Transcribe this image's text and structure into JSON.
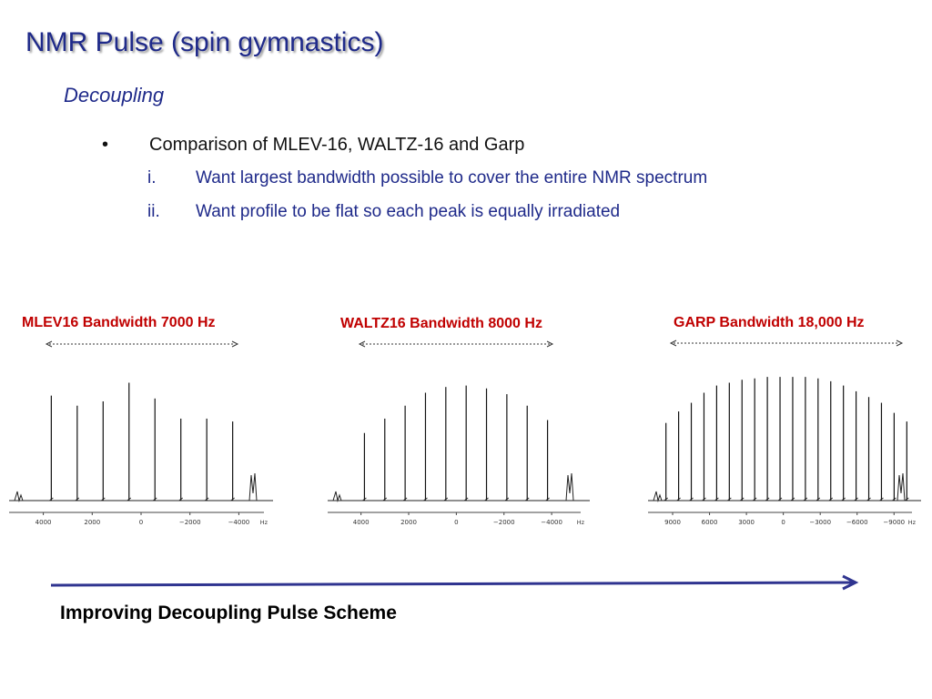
{
  "slide": {
    "title": "NMR Pulse (spin gymnastics)",
    "subtitle": "Decoupling",
    "bullet": {
      "marker": "•",
      "text": "Comparison of MLEV-16, WALTZ-16 and Garp"
    },
    "sub_bullets": [
      {
        "marker": "i.",
        "text": "Want largest bandwidth possible to cover the entire NMR spectrum"
      },
      {
        "marker": "ii.",
        "text": "Want profile to be flat so each peak is equally irradiated"
      }
    ],
    "footer": "Improving Decoupling Pulse Scheme",
    "colors": {
      "title": "#1f2a8a",
      "spectrum_title": "#c00000",
      "arrow": "#2f3490"
    }
  },
  "spectra": [
    {
      "title": "MLEV16 Bandwidth 7000 Hz",
      "axis_unit": "Hz",
      "ticks": [
        {
          "value": 4000,
          "label": "4000"
        },
        {
          "value": 2000,
          "label": "2000"
        },
        {
          "value": 0,
          "label": "0"
        },
        {
          "value": -2000,
          "label": "−2000"
        },
        {
          "value": -4000,
          "label": "−4000"
        }
      ],
      "x_range": [
        5400,
        -5400
      ],
      "peak_heights": [
        0.73,
        0.66,
        0.69,
        0.82,
        0.71,
        0.57,
        0.57,
        0.55
      ]
    },
    {
      "title": "WALTZ16 Bandwidth 8000 Hz",
      "axis_unit": "Hz",
      "ticks": [
        {
          "value": 4000,
          "label": "4000"
        },
        {
          "value": 2000,
          "label": "2000"
        },
        {
          "value": 0,
          "label": "0"
        },
        {
          "value": -2000,
          "label": "−2000"
        },
        {
          "value": -4000,
          "label": "−4000"
        }
      ],
      "x_range": [
        5400,
        -5600
      ],
      "peak_heights": [
        0.47,
        0.57,
        0.66,
        0.75,
        0.79,
        0.8,
        0.78,
        0.74,
        0.66,
        0.56
      ]
    },
    {
      "title": "GARP Bandwidth 18,000 Hz",
      "axis_unit": "Hz",
      "ticks": [
        {
          "value": 9000,
          "label": "9000"
        },
        {
          "value": 6000,
          "label": "6000"
        },
        {
          "value": 3000,
          "label": "3000"
        },
        {
          "value": 0,
          "label": "0"
        },
        {
          "value": -3000,
          "label": "−3000"
        },
        {
          "value": -6000,
          "label": "−6000"
        },
        {
          "value": -9000,
          "label": "−9000"
        }
      ],
      "x_range": [
        11000,
        -11200
      ],
      "peak_heights": [
        0.54,
        0.62,
        0.68,
        0.75,
        0.8,
        0.82,
        0.84,
        0.85,
        0.86,
        0.86,
        0.86,
        0.86,
        0.85,
        0.83,
        0.8,
        0.76,
        0.72,
        0.68,
        0.61,
        0.55
      ]
    }
  ]
}
